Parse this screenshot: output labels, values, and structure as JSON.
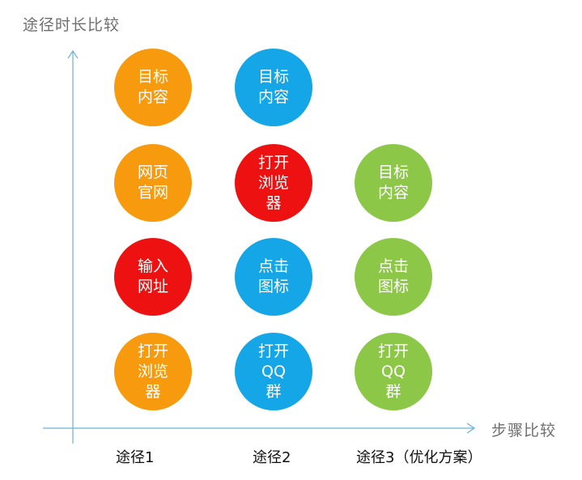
{
  "axes": {
    "y_label": "途径时长比较",
    "x_label": "步骤比较",
    "color": "#6ab0d8"
  },
  "colors": {
    "orange": "#f79a0e",
    "blue": "#14a6e6",
    "red": "#ee1111",
    "green": "#8cc748"
  },
  "routes": [
    {
      "label": "途径1",
      "steps": [
        {
          "text": "目标\n内容",
          "color": "orange"
        },
        {
          "text": "网页\n官网",
          "color": "orange"
        },
        {
          "text": "输入\n网址",
          "color": "red"
        },
        {
          "text": "打开\n浏览\n器",
          "color": "orange"
        }
      ]
    },
    {
      "label": "途径2",
      "steps": [
        {
          "text": "目标\n内容",
          "color": "blue"
        },
        {
          "text": "打开\n浏览\n器",
          "color": "red"
        },
        {
          "text": "点击\n图标",
          "color": "blue"
        },
        {
          "text": "打开\nQQ\n群",
          "color": "blue"
        }
      ]
    },
    {
      "label": "途径3（优化方案）",
      "steps": [
        {
          "text": "目标\n内容",
          "color": "green"
        },
        {
          "text": "点击\n图标",
          "color": "green"
        },
        {
          "text": "打开\nQQ\n群",
          "color": "green"
        }
      ]
    }
  ]
}
